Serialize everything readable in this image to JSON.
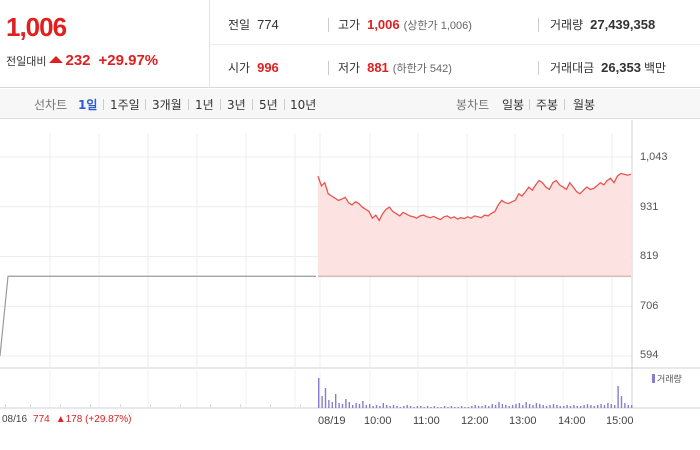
{
  "summary": {
    "price": "1,006",
    "change_label": "전일대비",
    "change_value": "232",
    "change_pct": "+29.97%",
    "up_color": "#e02020"
  },
  "info": {
    "prev_close_label": "전일",
    "prev_close": "774",
    "high_label": "고가",
    "high": "1,006",
    "upper_limit": "(상한가 1,006)",
    "volume_label": "거래량",
    "volume": "27,439,358",
    "open_label": "시가",
    "open": "996",
    "low_label": "저가",
    "low": "881",
    "lower_limit": "(하한가 542)",
    "value_label": "거래대금",
    "value": "26,353",
    "value_unit": "백만"
  },
  "tabs": {
    "line_label": "선차트",
    "line_items": [
      "1일",
      "1주일",
      "3개월",
      "1년",
      "3년",
      "5년",
      "10년"
    ],
    "active_line": "1일",
    "candle_label": "봉차트",
    "candle_items": [
      "일봉",
      "주봉",
      "월봉"
    ]
  },
  "chart_data": {
    "type": "line",
    "y_ticks": [
      "1,043",
      "931",
      "819",
      "706",
      "594"
    ],
    "ylim": [
      594,
      1043
    ],
    "x_ticks": [
      "08/16",
      "08/19",
      "10:00",
      "11:00",
      "12:00",
      "13:00",
      "14:00",
      "15:00"
    ],
    "prev_day_label": "08/16",
    "prev_day_close": "774",
    "prev_day_change": "178",
    "prev_day_pct": "(+29.87%)",
    "volume_legend": "거래량",
    "line_color": "#e8544f",
    "fill_color": "#fde2e2",
    "prev_line_color": "#9a9a9a",
    "volume_color": "#8a7bd0",
    "prev_series": [
      594,
      774,
      774,
      774,
      774
    ],
    "series": [
      {
        "values": [
          1000,
          978,
          985,
          960,
          955,
          950,
          945,
          948,
          952,
          940,
          935,
          942,
          938,
          930,
          925,
          920,
          905,
          912,
          900,
          915,
          925,
          930,
          920,
          915,
          910,
          918,
          914,
          910,
          908,
          905,
          910,
          912,
          908,
          906,
          909,
          905,
          902,
          908,
          910,
          905,
          908,
          903,
          906,
          904,
          908,
          905,
          910,
          908,
          906,
          912,
          910,
          916,
          920,
          935,
          945,
          940,
          938,
          942,
          945,
          960,
          955,
          965,
          975,
          968,
          980,
          990,
          985,
          975,
          970,
          985,
          990,
          980,
          975,
          970,
          985,
          975,
          965,
          960,
          968,
          975,
          970,
          972,
          978,
          985,
          980,
          990,
          995,
          985,
          1000,
          1006,
          1004,
          1002,
          1004
        ]
      }
    ]
  }
}
